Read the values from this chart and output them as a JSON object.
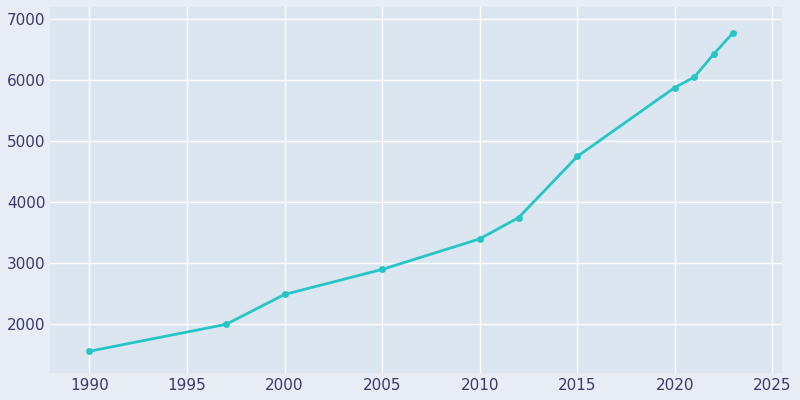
{
  "years": [
    1990,
    1997,
    2000,
    2005,
    2010,
    2012,
    2015,
    2020,
    2021,
    2022,
    2023
  ],
  "values": [
    1560,
    2000,
    2490,
    2900,
    3400,
    3750,
    4750,
    5880,
    6050,
    6430,
    6780
  ],
  "line_color": "#26c6c6",
  "marker_color": "#26c6c6",
  "bg_color": "#e8edf5",
  "plot_bg_color": "#dce6f0",
  "grid_color": "#ffffff",
  "tick_color": "#3a3a6a",
  "xlim": [
    1988,
    2025.5
  ],
  "ylim": [
    1200,
    7200
  ],
  "xticks": [
    1990,
    1995,
    2000,
    2005,
    2010,
    2015,
    2020,
    2025
  ],
  "yticks": [
    2000,
    3000,
    4000,
    5000,
    6000,
    7000
  ],
  "marker_size": 5,
  "line_width": 2.0,
  "figsize": [
    8.0,
    4.0
  ],
  "dpi": 100
}
